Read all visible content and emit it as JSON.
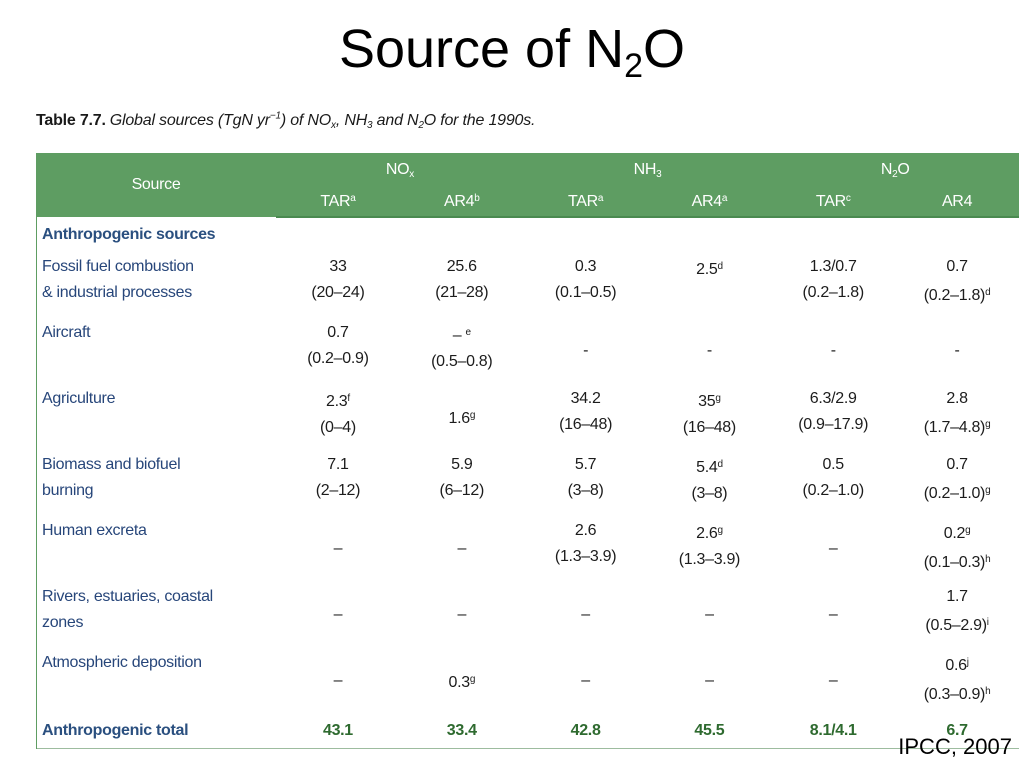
{
  "slide": {
    "title_pre": "Source of N",
    "title_sub": "2",
    "title_post": "O"
  },
  "caption": {
    "label": "Table 7.7.",
    "text_a": "Global sources (TgN yr",
    "text_b": "−1",
    "text_c": ") of NO",
    "text_d": "x",
    "text_e": ", NH",
    "text_f": "3",
    "text_g": " and N",
    "text_h": "2",
    "text_i": "O for the 1990s."
  },
  "table": {
    "source_header": "Source",
    "groups": [
      {
        "name": "NO",
        "sub": "x"
      },
      {
        "name": "NH",
        "sub": "3"
      },
      {
        "name": "N",
        "sub": "2",
        "suffix": "O"
      }
    ],
    "subheaders": [
      {
        "label": "TAR",
        "sup": "a"
      },
      {
        "label": "AR4",
        "sup": "b"
      },
      {
        "label": "TAR",
        "sup": "a"
      },
      {
        "label": "AR4",
        "sup": "a"
      },
      {
        "label": "TAR",
        "sup": "c"
      },
      {
        "label": "AR4",
        "sup": ""
      }
    ],
    "section_label": "Anthropogenic sources",
    "rows": [
      {
        "source": [
          "Fossil fuel combustion",
          " & industrial processes"
        ],
        "cells": [
          {
            "top": "33",
            "bottom": "(20–24)"
          },
          {
            "top": "25.6",
            "bottom": "(21–28)"
          },
          {
            "top": "0.3",
            "bottom": "(0.1–0.5)"
          },
          {
            "top": "2.5",
            "top_sup": "d",
            "bottom": ""
          },
          {
            "top": "1.3/0.7",
            "bottom": "(0.2–1.8)"
          },
          {
            "top": "0.7",
            "bottom": "(0.2–1.8)",
            "bottom_sup": "d"
          }
        ]
      },
      {
        "source": [
          "Aircraft"
        ],
        "cells": [
          {
            "top": "0.7",
            "bottom": "(0.2–0.9)"
          },
          {
            "top": "– ",
            "top_sup": "e",
            "bottom": "(0.5–0.8)"
          },
          {
            "mid": "-"
          },
          {
            "mid": "-"
          },
          {
            "mid": "-"
          },
          {
            "mid": "-"
          }
        ]
      },
      {
        "source": [
          "Agriculture"
        ],
        "cells": [
          {
            "top": "2.3",
            "top_sup": "f",
            "bottom": "(0–4)"
          },
          {
            "mid": "1.6",
            "mid_sup": "g"
          },
          {
            "top": "34.2",
            "bottom": "(16–48)"
          },
          {
            "top": "35",
            "top_sup": "g",
            "bottom": "(16–48)"
          },
          {
            "top": "6.3/2.9",
            "bottom": "(0.9–17.9)"
          },
          {
            "top": "2.8",
            "bottom": "(1.7–4.8)",
            "bottom_sup": "g"
          }
        ]
      },
      {
        "source": [
          "Biomass and biofuel",
          " burning"
        ],
        "cells": [
          {
            "top": "7.1",
            "bottom": "(2–12)"
          },
          {
            "top": "5.9",
            "bottom": "(6–12)"
          },
          {
            "top": "5.7",
            "bottom": "(3–8)"
          },
          {
            "top": "5.4",
            "top_sup": "d",
            "bottom": "(3–8)"
          },
          {
            "top": "0.5",
            "bottom": "(0.2–1.0)"
          },
          {
            "top": "0.7",
            "bottom": "(0.2–1.0)",
            "bottom_sup": "g"
          }
        ]
      },
      {
        "source": [
          "Human excreta"
        ],
        "cells": [
          {
            "mid": "–"
          },
          {
            "mid": "–"
          },
          {
            "top": "2.6",
            "bottom": "(1.3–3.9)"
          },
          {
            "top": "2.6",
            "top_sup": "g",
            "bottom": "(1.3–3.9)"
          },
          {
            "mid": "–"
          },
          {
            "top": "0.2",
            "top_sup": "g",
            "bottom": "(0.1–0.3)",
            "bottom_sup": "h"
          }
        ]
      },
      {
        "source": [
          "Rivers, estuaries, coastal",
          " zones"
        ],
        "cells": [
          {
            "mid": "–"
          },
          {
            "mid": "–"
          },
          {
            "mid": "–"
          },
          {
            "mid": "–"
          },
          {
            "mid": "–"
          },
          {
            "top": "1.7",
            "bottom": "(0.5–2.9)",
            "bottom_sup": "i"
          }
        ]
      },
      {
        "source": [
          "Atmospheric deposition"
        ],
        "cells": [
          {
            "mid": "–"
          },
          {
            "mid": "0.3",
            "mid_sup": "g"
          },
          {
            "mid": "–"
          },
          {
            "mid": "–"
          },
          {
            "mid": "–"
          },
          {
            "top": "0.6",
            "top_sup": "j",
            "bottom": "(0.3–0.9)",
            "bottom_sup": "h"
          }
        ]
      }
    ],
    "total": {
      "label": "Anthropogenic total",
      "values": [
        "43.1",
        "33.4",
        "42.8",
        "45.5",
        "8.1/4.1",
        "6.7"
      ]
    }
  },
  "source_note": "IPCC, 2007"
}
